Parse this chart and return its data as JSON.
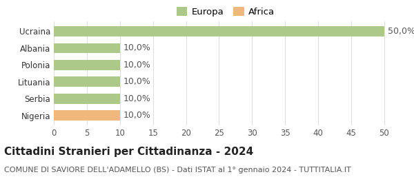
{
  "categories": [
    "Ucraina",
    "Albania",
    "Polonia",
    "Lituania",
    "Serbia",
    "Nigeria"
  ],
  "values": [
    50.0,
    10.0,
    10.0,
    10.0,
    10.0,
    10.0
  ],
  "bar_colors": [
    "#adc98a",
    "#adc98a",
    "#adc98a",
    "#adc98a",
    "#adc98a",
    "#f0b87a"
  ],
  "legend_entries": [
    {
      "label": "Europa",
      "color": "#adc98a"
    },
    {
      "label": "Africa",
      "color": "#f0b87a"
    }
  ],
  "value_labels": [
    "50,0%",
    "10,0%",
    "10,0%",
    "10,0%",
    "10,0%",
    "10,0%"
  ],
  "xlim": [
    0,
    52
  ],
  "xticks": [
    0,
    5,
    10,
    15,
    20,
    25,
    30,
    35,
    40,
    45,
    50
  ],
  "title": "Cittadini Stranieri per Cittadinanza - 2024",
  "subtitle": "COMUNE DI SAVIORE DELL'ADAMELLO (BS) - Dati ISTAT al 1° gennaio 2024 - TUTTITALIA.IT",
  "title_fontsize": 11,
  "subtitle_fontsize": 8,
  "background_color": "#ffffff",
  "grid_color": "#e0e0e0",
  "label_fontsize": 9,
  "tick_fontsize": 8.5
}
